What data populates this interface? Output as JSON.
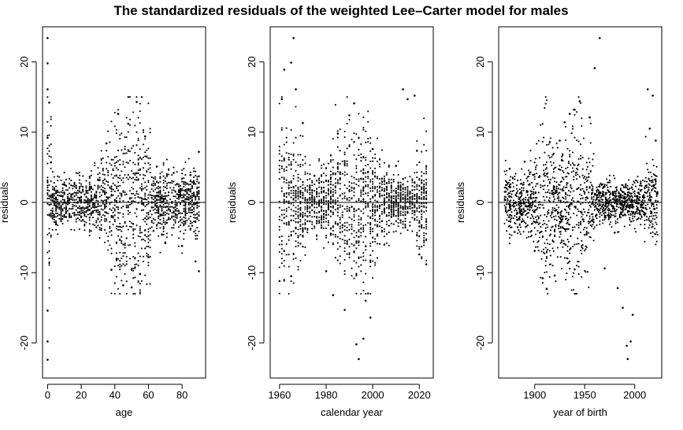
{
  "figure": {
    "title": "The standardized residuals of the weighted Lee–Carter model for males"
  },
  "chart_data": [
    {
      "type": "scatter",
      "title": "",
      "xlabel": "age",
      "ylabel": "residuals",
      "xlim": [
        -3,
        94
      ],
      "ylim": [
        -25,
        25
      ],
      "xticks": [
        0,
        20,
        40,
        60,
        80
      ],
      "yticks": [
        -20,
        -10,
        0,
        10,
        20
      ],
      "hline": 0,
      "grid": false,
      "sample_points": [
        [
          0,
          23.4
        ],
        [
          0,
          19.8
        ],
        [
          0,
          16.1
        ],
        [
          0,
          9.2
        ],
        [
          0,
          -15.4
        ],
        [
          0,
          -19.8
        ],
        [
          0,
          -22.4
        ],
        [
          1,
          14.2
        ],
        [
          2,
          5.7
        ],
        [
          5,
          -3.1
        ],
        [
          10,
          2.5
        ],
        [
          15,
          1.2
        ],
        [
          20,
          -2.0
        ],
        [
          25,
          1.8
        ],
        [
          30,
          3.2
        ],
        [
          35,
          8.4
        ],
        [
          38,
          -9.6
        ],
        [
          42,
          12.6
        ],
        [
          45,
          -11.8
        ],
        [
          48,
          11.2
        ],
        [
          50,
          -12.1
        ],
        [
          53,
          14.3
        ],
        [
          55,
          -10.2
        ],
        [
          58,
          9.4
        ],
        [
          60,
          -7.8
        ],
        [
          65,
          5.1
        ],
        [
          70,
          -5.8
        ],
        [
          75,
          4.2
        ],
        [
          80,
          -6.2
        ],
        [
          85,
          3.9
        ],
        [
          88,
          -8.4
        ],
        [
          90,
          7.2
        ],
        [
          90,
          -9.8
        ]
      ]
    },
    {
      "type": "scatter",
      "title": "",
      "xlabel": "calendar year",
      "ylabel": "residuals",
      "xlim": [
        1956,
        2026
      ],
      "ylim": [
        -25,
        25
      ],
      "xticks": [
        1960,
        1980,
        2000,
        2020
      ],
      "yticks": [
        -20,
        -10,
        0,
        10,
        20
      ],
      "hline": 0,
      "grid": false,
      "sample_points": [
        [
          1961,
          14.7
        ],
        [
          1962,
          18.9
        ],
        [
          1965,
          19.9
        ],
        [
          1966,
          23.4
        ],
        [
          1967,
          16.1
        ],
        [
          1970,
          11.3
        ],
        [
          1960,
          -11.2
        ],
        [
          1965,
          -10.5
        ],
        [
          1975,
          3.8
        ],
        [
          1980,
          -9.8
        ],
        [
          1983,
          -13.2
        ],
        [
          1985,
          9.8
        ],
        [
          1988,
          -15.3
        ],
        [
          1990,
          12.4
        ],
        [
          1992,
          14.1
        ],
        [
          1993,
          -20.2
        ],
        [
          1994,
          -22.3
        ],
        [
          1996,
          -19.4
        ],
        [
          1997,
          -14.0
        ],
        [
          1999,
          -16.4
        ],
        [
          2000,
          7.6
        ],
        [
          2005,
          -6.0
        ],
        [
          2010,
          5.2
        ],
        [
          2013,
          16.1
        ],
        [
          2015,
          14.7
        ],
        [
          2018,
          15.2
        ],
        [
          2020,
          -7.4
        ],
        [
          2023,
          -8.8
        ]
      ]
    },
    {
      "type": "scatter",
      "title": "",
      "xlabel": "year of birth",
      "ylabel": "residuals",
      "xlim": [
        1864,
        2027
      ],
      "ylim": [
        -25,
        25
      ],
      "xticks": [
        1900,
        1950,
        2000
      ],
      "yticks": [
        -20,
        -10,
        0,
        10,
        20
      ],
      "hline": 0,
      "grid": false,
      "sample_points": [
        [
          1875,
          4.8
        ],
        [
          1880,
          -4.2
        ],
        [
          1890,
          5.8
        ],
        [
          1900,
          -6.9
        ],
        [
          1908,
          -10.8
        ],
        [
          1912,
          -12.3
        ],
        [
          1920,
          -10.4
        ],
        [
          1925,
          8.8
        ],
        [
          1930,
          11.4
        ],
        [
          1935,
          12.6
        ],
        [
          1940,
          13.2
        ],
        [
          1945,
          14.4
        ],
        [
          1950,
          -4.6
        ],
        [
          1955,
          12.1
        ],
        [
          1960,
          19.1
        ],
        [
          1965,
          23.4
        ],
        [
          1970,
          -9.4
        ],
        [
          1980,
          -4.3
        ],
        [
          1983,
          -12.2
        ],
        [
          1988,
          -15.0
        ],
        [
          1992,
          -20.4
        ],
        [
          1993,
          -22.3
        ],
        [
          1996,
          -19.8
        ],
        [
          1998,
          -16.0
        ],
        [
          2013,
          16.1
        ],
        [
          2015,
          10.5
        ],
        [
          2018,
          15.2
        ],
        [
          2021,
          8.8
        ]
      ]
    }
  ]
}
